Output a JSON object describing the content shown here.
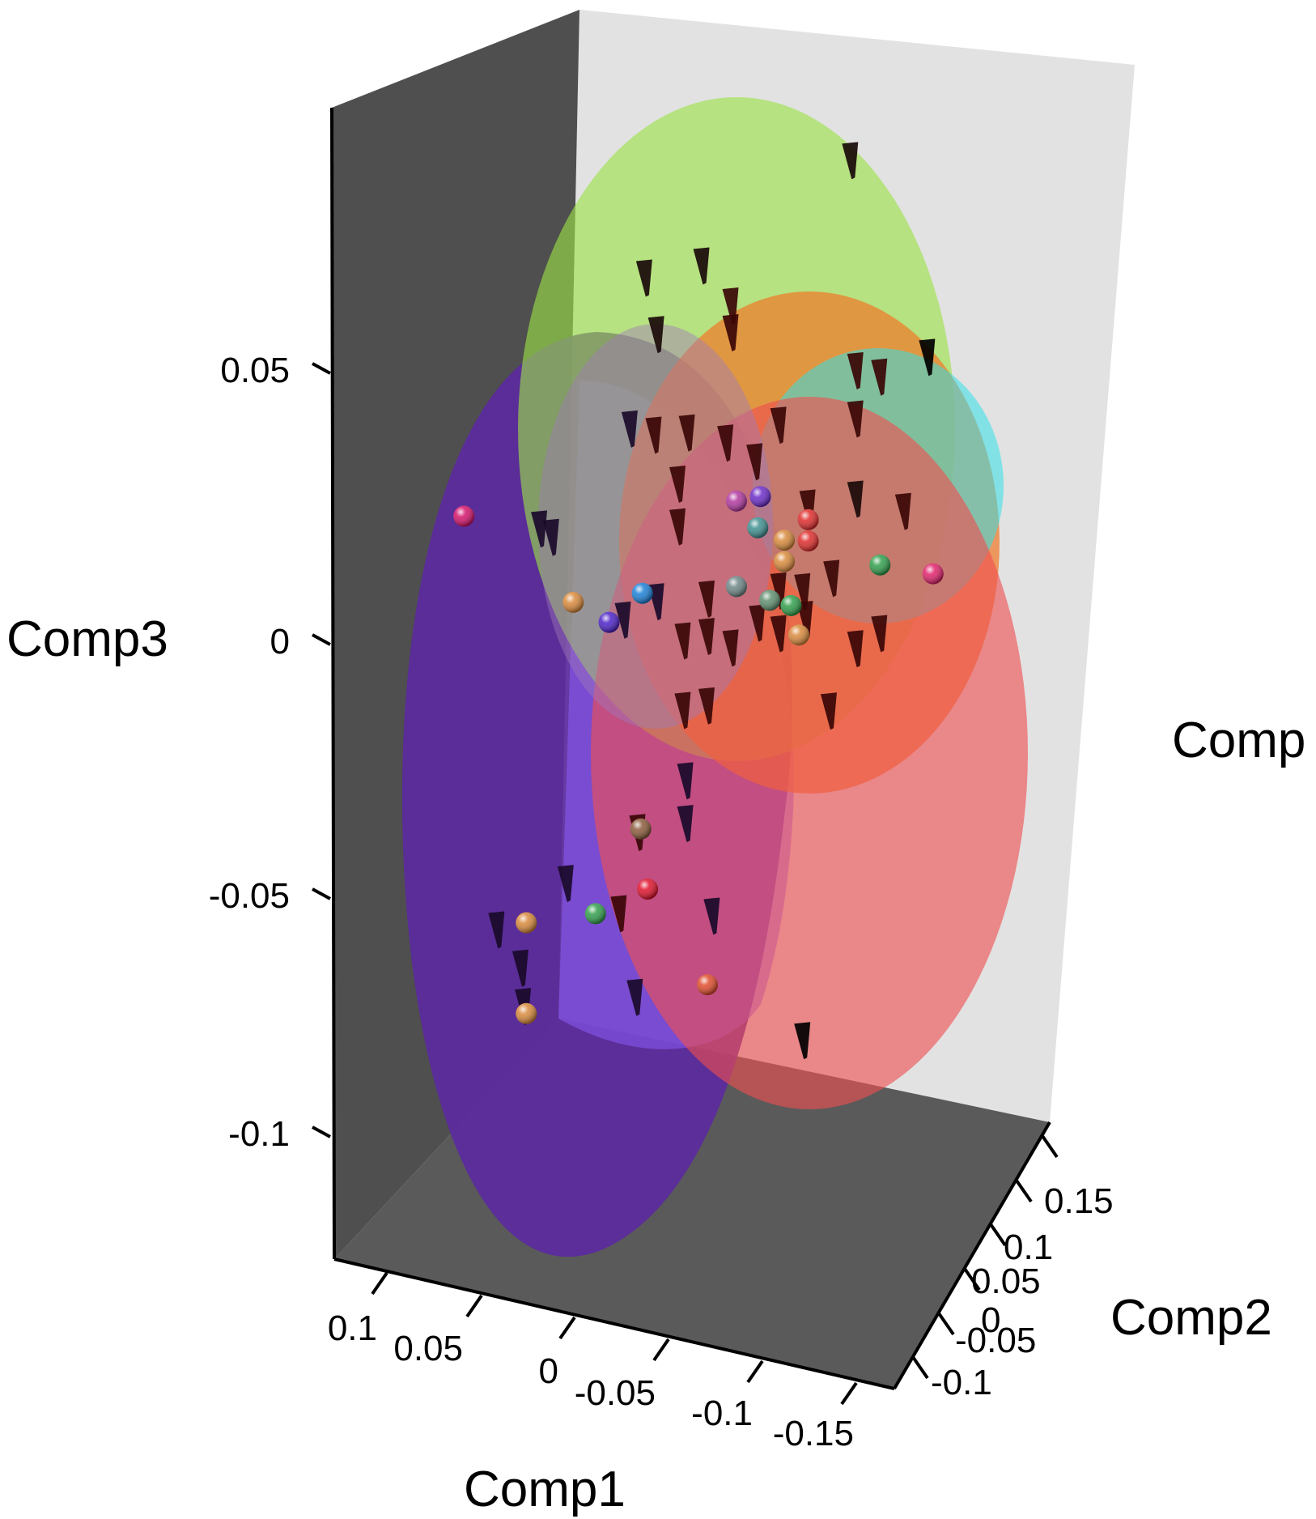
{
  "chart_data": {
    "type": "scatter",
    "dimensions": 3,
    "axes": {
      "x": {
        "label": "Comp1",
        "ticks": [
          "0.1",
          "0.05",
          "0",
          "-0.05",
          "-0.1",
          "-0.15"
        ]
      },
      "y": {
        "label": "Comp2",
        "ticks": [
          "-0.1",
          "-0.05",
          "0",
          "0.05",
          "0.1",
          "0.15"
        ]
      },
      "z": {
        "label": "Comp3",
        "ticks": [
          "0.05",
          "0",
          "-0.05",
          "-0.1"
        ]
      },
      "extra_label": "Comp"
    },
    "wall_colors": {
      "back": "#e2e2e2",
      "left": "#4f4f4f",
      "floor": "#5a5a5a"
    },
    "ellipsoids": [
      {
        "color": "#8b5cf6",
        "dark": "#5b2a9e"
      },
      {
        "color": "#9be246"
      },
      {
        "color": "#f07a2a"
      },
      {
        "color": "#33e0e8"
      },
      {
        "color": "#ef4f50"
      }
    ],
    "sphere_points": [
      {
        "comp1": 0.095,
        "comp2": -0.07,
        "comp3": 0.028,
        "color": "#d4106a"
      },
      {
        "comp1": 0.045,
        "comp2": -0.04,
        "comp3": 0.011,
        "color": "#d9893a"
      },
      {
        "comp1": 0.03,
        "comp2": -0.025,
        "comp3": 0.006,
        "color": "#4b1fc8"
      },
      {
        "comp1": 0.015,
        "comp2": -0.015,
        "comp3": 0.011,
        "color": "#1a7fd6"
      },
      {
        "comp1": -0.02,
        "comp2": 0.04,
        "comp3": 0.022,
        "color": "#b0369e"
      },
      {
        "comp1": -0.03,
        "comp2": 0.05,
        "comp3": 0.022,
        "color": "#6a2ac8"
      },
      {
        "comp1": -0.03,
        "comp2": 0.045,
        "comp3": 0.017,
        "color": "#3d8f8f"
      },
      {
        "comp1": -0.02,
        "comp2": 0.04,
        "comp3": 0.006,
        "color": "#6d8585"
      },
      {
        "comp1": -0.04,
        "comp2": 0.06,
        "comp3": 0.013,
        "color": "#d9893a"
      },
      {
        "comp1": -0.04,
        "comp2": 0.06,
        "comp3": 0.009,
        "color": "#d9893a"
      },
      {
        "comp1": -0.05,
        "comp2": 0.07,
        "comp3": 0.016,
        "color": "#e02a2a"
      },
      {
        "comp1": -0.05,
        "comp2": 0.07,
        "comp3": 0.012,
        "color": "#e02a2a"
      },
      {
        "comp1": -0.045,
        "comp2": 0.055,
        "comp3": 0.002,
        "color": "#2f9e4a"
      },
      {
        "comp1": -0.035,
        "comp2": 0.05,
        "comp3": 0.003,
        "color": "#5e8f6e"
      },
      {
        "comp1": -0.08,
        "comp2": 0.1,
        "comp3": 0.005,
        "color": "#2f9e4a"
      },
      {
        "comp1": -0.1,
        "comp2": 0.13,
        "comp3": 0.0,
        "color": "#e0206a"
      },
      {
        "comp1": -0.045,
        "comp2": 0.07,
        "comp3": -0.006,
        "color": "#d9893a"
      },
      {
        "comp1": 0.02,
        "comp2": 0.0,
        "comp3": -0.036,
        "color": "#8a5a3a"
      },
      {
        "comp1": 0.015,
        "comp2": -0.005,
        "comp3": -0.046,
        "color": "#e0102a"
      },
      {
        "comp1": 0.07,
        "comp2": -0.04,
        "comp3": -0.051,
        "color": "#d9893a"
      },
      {
        "comp1": 0.04,
        "comp2": -0.015,
        "comp3": -0.051,
        "color": "#2f9e4a"
      },
      {
        "comp1": 0.07,
        "comp2": -0.04,
        "comp3": -0.068,
        "color": "#d9893a"
      },
      {
        "comp1": -0.01,
        "comp2": 0.02,
        "comp3": -0.066,
        "color": "#e04a2a"
      }
    ],
    "cone_points_note": "dark-red / black cone markers, positions estimated",
    "cone_points": [
      {
        "comp1": -0.07,
        "comp2": 0.08,
        "comp3": 0.083,
        "color": "#1a0a0a"
      },
      {
        "comp1": -0.01,
        "comp2": 0.01,
        "comp3": 0.07,
        "color": "#1a0a0a"
      },
      {
        "comp1": 0.015,
        "comp2": -0.01,
        "comp3": 0.069,
        "color": "#1a0a0a"
      },
      {
        "comp1": 0.01,
        "comp2": -0.005,
        "comp3": 0.058,
        "color": "#1a0a0a"
      },
      {
        "comp1": -0.02,
        "comp2": 0.03,
        "comp3": 0.06,
        "color": "#3a0606"
      },
      {
        "comp1": -0.02,
        "comp2": 0.03,
        "comp3": 0.055,
        "color": "#3a0606"
      },
      {
        "comp1": -0.1,
        "comp2": 0.12,
        "comp3": 0.042,
        "color": "#000000"
      },
      {
        "comp1": -0.07,
        "comp2": 0.09,
        "comp3": 0.042,
        "color": "#3a0606"
      },
      {
        "comp1": -0.08,
        "comp2": 0.1,
        "comp3": 0.04,
        "color": "#3a0606"
      },
      {
        "comp1": 0.02,
        "comp2": -0.02,
        "comp3": 0.042,
        "color": "#1a0a2a"
      },
      {
        "comp1": 0.01,
        "comp2": -0.01,
        "comp3": 0.04,
        "color": "#3a0606"
      },
      {
        "comp1": -0.005,
        "comp2": 0.0,
        "comp3": 0.04,
        "color": "#3a0606"
      },
      {
        "comp1": -0.02,
        "comp2": 0.02,
        "comp3": 0.036,
        "color": "#3a0606"
      },
      {
        "comp1": -0.04,
        "comp2": 0.05,
        "comp3": 0.036,
        "color": "#3a0606"
      },
      {
        "comp1": -0.07,
        "comp2": 0.09,
        "comp3": 0.033,
        "color": "#3a0606"
      },
      {
        "comp1": -0.03,
        "comp2": 0.04,
        "comp3": 0.03,
        "color": "#3a0606"
      },
      {
        "comp1": 0.0,
        "comp2": 0.0,
        "comp3": 0.03,
        "color": "#3a0606"
      },
      {
        "comp1": 0.06,
        "comp2": -0.05,
        "comp3": 0.025,
        "color": "#1a0a2a"
      },
      {
        "comp1": 0.055,
        "comp2": -0.045,
        "comp3": 0.023,
        "color": "#1a0a2a"
      },
      {
        "comp1": 0.0,
        "comp2": 0.0,
        "comp3": 0.022,
        "color": "#3a0606"
      },
      {
        "comp1": -0.05,
        "comp2": 0.07,
        "comp3": 0.018,
        "color": "#3a0606"
      },
      {
        "comp1": -0.07,
        "comp2": 0.09,
        "comp3": 0.018,
        "color": "#1a0a0a"
      },
      {
        "comp1": -0.09,
        "comp2": 0.11,
        "comp3": 0.014,
        "color": "#3a0606"
      },
      {
        "comp1": 0.01,
        "comp2": -0.005,
        "comp3": 0.008,
        "color": "#1a0a2a"
      },
      {
        "comp1": 0.025,
        "comp2": -0.015,
        "comp3": 0.005,
        "color": "#1a0a2a"
      },
      {
        "comp1": -0.01,
        "comp2": 0.02,
        "comp3": 0.006,
        "color": "#3a0606"
      },
      {
        "comp1": -0.04,
        "comp2": 0.05,
        "comp3": 0.005,
        "color": "#3a0606"
      },
      {
        "comp1": -0.05,
        "comp2": 0.06,
        "comp3": 0.004,
        "color": "#3a0606"
      },
      {
        "comp1": -0.06,
        "comp2": 0.08,
        "comp3": 0.004,
        "color": "#3a0606"
      },
      {
        "comp1": 0.0,
        "comp2": 0.01,
        "comp3": -0.001,
        "color": "#3a0606"
      },
      {
        "comp1": -0.01,
        "comp2": 0.02,
        "comp3": -0.001,
        "color": "#3a0606"
      },
      {
        "comp1": -0.02,
        "comp2": 0.03,
        "comp3": -0.004,
        "color": "#3a0606"
      },
      {
        "comp1": -0.04,
        "comp2": 0.05,
        "comp3": -0.003,
        "color": "#3a0606"
      },
      {
        "comp1": -0.05,
        "comp2": 0.065,
        "comp3": -0.002,
        "color": "#3a0606"
      },
      {
        "comp1": -0.03,
        "comp2": 0.045,
        "comp3": -0.001,
        "color": "#3a0606"
      },
      {
        "comp1": -0.08,
        "comp2": 0.1,
        "comp3": -0.008,
        "color": "#3a0606"
      },
      {
        "comp1": -0.07,
        "comp2": 0.09,
        "comp3": -0.01,
        "color": "#3a0606"
      },
      {
        "comp1": 0.0,
        "comp2": 0.01,
        "comp3": -0.014,
        "color": "#3a0606"
      },
      {
        "comp1": -0.01,
        "comp2": 0.02,
        "comp3": -0.014,
        "color": "#3a0606"
      },
      {
        "comp1": -0.06,
        "comp2": 0.075,
        "comp3": -0.02,
        "color": "#3a0606"
      },
      {
        "comp1": 0.0,
        "comp2": 0.015,
        "comp3": -0.028,
        "color": "#1a0a2a"
      },
      {
        "comp1": 0.02,
        "comp2": -0.005,
        "comp3": -0.036,
        "color": "#3a0606"
      },
      {
        "comp1": 0.0,
        "comp2": 0.015,
        "comp3": -0.036,
        "color": "#1a0a2a"
      },
      {
        "comp1": 0.05,
        "comp2": -0.035,
        "comp3": -0.043,
        "color": "#1a0a2a"
      },
      {
        "comp1": 0.08,
        "comp2": -0.06,
        "comp3": -0.05,
        "color": "#1a0a2a"
      },
      {
        "comp1": 0.03,
        "comp2": -0.005,
        "comp3": -0.052,
        "color": "#3a0606"
      },
      {
        "comp1": -0.01,
        "comp2": 0.03,
        "comp3": -0.055,
        "color": "#1a0a2a"
      },
      {
        "comp1": 0.07,
        "comp2": -0.05,
        "comp3": -0.058,
        "color": "#1a0a2a"
      },
      {
        "comp1": 0.07,
        "comp2": -0.045,
        "comp3": -0.066,
        "color": "#1a0a2a"
      },
      {
        "comp1": 0.02,
        "comp2": -0.01,
        "comp3": -0.066,
        "color": "#1a0a2a"
      },
      {
        "comp1": -0.05,
        "comp2": 0.06,
        "comp3": -0.08,
        "color": "#000000"
      }
    ]
  }
}
